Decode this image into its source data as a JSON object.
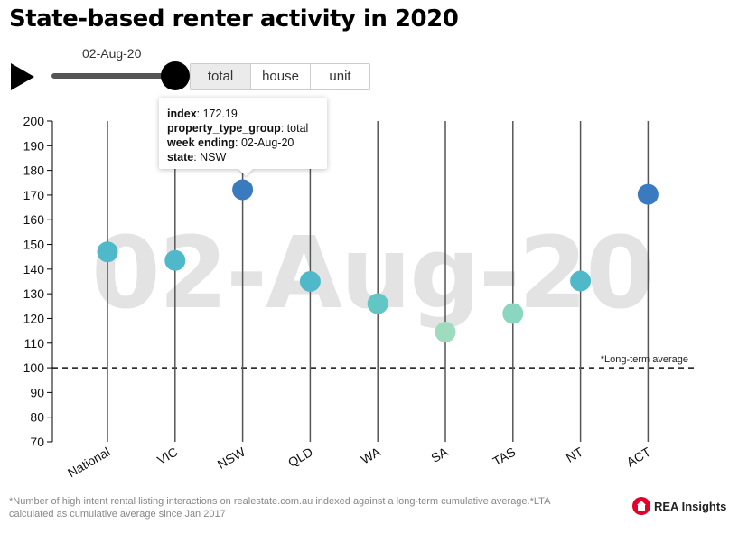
{
  "title": "State-based renter activity in 2020",
  "slider": {
    "date_label": "02-Aug-20",
    "position": 1.0
  },
  "type_buttons": [
    {
      "label": "total",
      "active": true
    },
    {
      "label": "house",
      "active": false
    },
    {
      "label": "unit",
      "active": false
    }
  ],
  "tooltip": {
    "rows": [
      {
        "key": "index",
        "value": "172.19"
      },
      {
        "key": "property_type_group",
        "value": "total"
      },
      {
        "key": "week ending",
        "value": "02-Aug-20"
      },
      {
        "key": "state",
        "value": "NSW"
      }
    ]
  },
  "chart_data": {
    "type": "scatter",
    "title": "State-based renter activity in 2020",
    "watermark": "02-Aug-20",
    "categories": [
      "National",
      "VIC",
      "NSW",
      "QLD",
      "WA",
      "SA",
      "TAS",
      "NT",
      "ACT"
    ],
    "values": [
      147,
      143.5,
      172.19,
      135,
      126,
      114.5,
      122,
      135.2,
      170.3
    ],
    "colors": [
      "#4fb9c9",
      "#4fb9c9",
      "#3a7bbf",
      "#4fb9c9",
      "#61c6c4",
      "#9fdcbf",
      "#8ad6c0",
      "#4fb9c9",
      "#3a7bbf"
    ],
    "ylim": [
      70,
      200
    ],
    "yticks": [
      70,
      80,
      90,
      100,
      110,
      120,
      130,
      140,
      150,
      160,
      170,
      180,
      190,
      200
    ],
    "reference_line": {
      "value": 100,
      "label": "*Long-term average"
    },
    "grid": false
  },
  "footnote": "*Number of high intent rental listing interactions on realestate.com.au indexed against a long-term cumulative average.*LTA calculated as cumulative average since Jan 2017",
  "brand": {
    "name": "REA Insights",
    "color": "#e4002b"
  }
}
